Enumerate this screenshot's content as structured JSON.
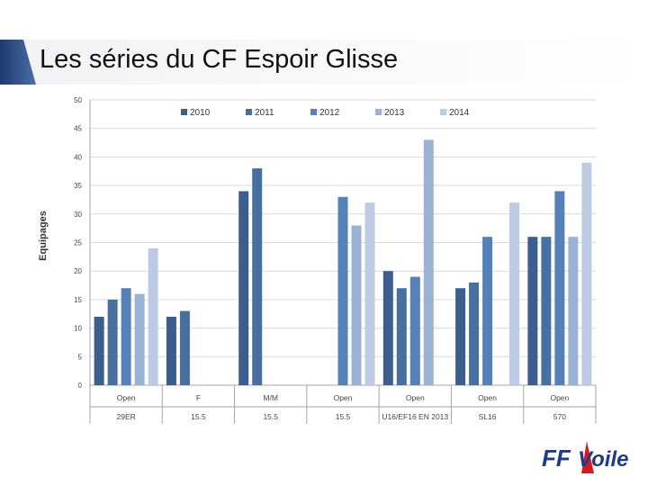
{
  "slide": {
    "title": "Les séries du CF Espoir Glisse"
  },
  "colors": {
    "accent": "#1f3a6e",
    "series": [
      "#3b5e8e",
      "#46709f",
      "#5581b8",
      "#9ab2d4",
      "#bccbe3"
    ],
    "axis": "#a6a6a6",
    "grid": "#d9d9d9"
  },
  "logo": {
    "text_ff": "FF",
    "text_voile": "Voile"
  },
  "chart_data": {
    "type": "bar",
    "title": "",
    "xlabel": "",
    "ylabel": "Equipages",
    "ylim": [
      0,
      50
    ],
    "yticks": [
      "0",
      "5",
      "10",
      "15",
      "20",
      "25",
      "30",
      "35",
      "40",
      "45",
      "50"
    ],
    "categories": [
      {
        "top": "Open",
        "bottom": "29ER"
      },
      {
        "top": "F",
        "bottom": "15.5"
      },
      {
        "top": "M/M",
        "bottom": "15.5"
      },
      {
        "top": "Open",
        "bottom": "15.5"
      },
      {
        "top": "Open",
        "bottom": "U16/EF16 EN 2013"
      },
      {
        "top": "Open",
        "bottom": "SL16"
      },
      {
        "top": "Open",
        "bottom": "570"
      }
    ],
    "series": [
      {
        "name": "2010",
        "values": [
          12,
          12,
          34,
          null,
          20,
          17,
          26
        ]
      },
      {
        "name": "2011",
        "values": [
          15,
          13,
          38,
          null,
          17,
          18,
          26
        ]
      },
      {
        "name": "2012",
        "values": [
          17,
          null,
          null,
          33,
          19,
          26,
          34
        ]
      },
      {
        "name": "2013",
        "values": [
          16,
          null,
          null,
          28,
          43,
          null,
          26
        ]
      },
      {
        "name": "2014",
        "values": [
          24,
          null,
          null,
          32,
          null,
          32,
          39
        ]
      }
    ],
    "grid": true,
    "legend": "top-center"
  }
}
